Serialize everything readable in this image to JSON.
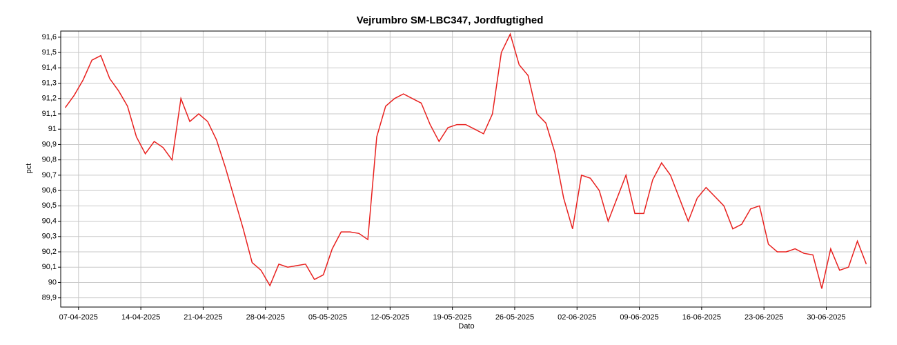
{
  "chart_data": {
    "type": "line",
    "title": "Vejrumbro SM-LBC347, Jordfugtighed",
    "x_label": "Dato",
    "y_label": "pct",
    "grid": true,
    "x": [
      "2025-04-05",
      "2025-04-06",
      "2025-04-07",
      "2025-04-08",
      "2025-04-09",
      "2025-04-10",
      "2025-04-11",
      "2025-04-12",
      "2025-04-13",
      "2025-04-14",
      "2025-04-15",
      "2025-04-16",
      "2025-04-17",
      "2025-04-18",
      "2025-04-19",
      "2025-04-20",
      "2025-04-21",
      "2025-04-22",
      "2025-04-23",
      "2025-04-24",
      "2025-04-25",
      "2025-04-26",
      "2025-04-27",
      "2025-04-28",
      "2025-04-29",
      "2025-04-30",
      "2025-05-01",
      "2025-05-02",
      "2025-05-03",
      "2025-05-04",
      "2025-05-05",
      "2025-05-06",
      "2025-05-07",
      "2025-05-08",
      "2025-05-09",
      "2025-05-10",
      "2025-05-11",
      "2025-05-12",
      "2025-05-13",
      "2025-05-14",
      "2025-05-15",
      "2025-05-16",
      "2025-05-17",
      "2025-05-18",
      "2025-05-19",
      "2025-05-20",
      "2025-05-21",
      "2025-05-22",
      "2025-05-23",
      "2025-05-24",
      "2025-05-25",
      "2025-05-26",
      "2025-05-27",
      "2025-05-28",
      "2025-05-29",
      "2025-05-30",
      "2025-05-31",
      "2025-06-01",
      "2025-06-02",
      "2025-06-03",
      "2025-06-04",
      "2025-06-05",
      "2025-06-06",
      "2025-06-07",
      "2025-06-08",
      "2025-06-09",
      "2025-06-10",
      "2025-06-11",
      "2025-06-12",
      "2025-06-13",
      "2025-06-14",
      "2025-06-15",
      "2025-06-16",
      "2025-06-17",
      "2025-06-18",
      "2025-06-19",
      "2025-06-20",
      "2025-06-21",
      "2025-06-22",
      "2025-06-23",
      "2025-06-24",
      "2025-06-25",
      "2025-06-26",
      "2025-06-27",
      "2025-06-28",
      "2025-06-29",
      "2025-06-30",
      "2025-07-01",
      "2025-07-02",
      "2025-07-03",
      "2025-07-04"
    ],
    "series": [
      {
        "name": "Jordfugtighed",
        "color": "#e8201e",
        "values": [
          91.14,
          91.22,
          91.32,
          91.45,
          91.48,
          91.33,
          91.25,
          91.15,
          90.95,
          90.84,
          90.92,
          90.88,
          90.8,
          91.2,
          91.05,
          91.1,
          91.05,
          90.93,
          90.75,
          90.55,
          90.35,
          90.13,
          90.08,
          89.98,
          90.12,
          90.1,
          90.11,
          90.12,
          90.02,
          90.05,
          90.22,
          90.33,
          90.33,
          90.32,
          90.28,
          90.95,
          91.15,
          91.2,
          91.23,
          91.2,
          91.17,
          91.03,
          90.92,
          91.01,
          91.03,
          91.03,
          91.0,
          90.97,
          91.1,
          91.5,
          91.62,
          91.42,
          91.35,
          91.1,
          91.04,
          90.85,
          90.55,
          90.35,
          90.7,
          90.68,
          90.6,
          90.4,
          90.55,
          90.7,
          90.45,
          90.45,
          90.67,
          90.78,
          90.7,
          90.55,
          90.4,
          90.55,
          90.62,
          90.56,
          90.5,
          90.35,
          90.38,
          90.48,
          90.5,
          90.25,
          90.2,
          90.2,
          90.22,
          90.19,
          90.18,
          89.96,
          90.22,
          90.08,
          90.1,
          90.27,
          90.12
        ]
      }
    ],
    "xlim": [
      "2025-04-05",
      "2025-07-05"
    ],
    "xticks": [
      {
        "value": "2025-04-07",
        "label": "07-04-2025"
      },
      {
        "value": "2025-04-14",
        "label": "14-04-2025"
      },
      {
        "value": "2025-04-21",
        "label": "21-04-2025"
      },
      {
        "value": "2025-04-28",
        "label": "28-04-2025"
      },
      {
        "value": "2025-05-05",
        "label": "05-05-2025"
      },
      {
        "value": "2025-05-12",
        "label": "12-05-2025"
      },
      {
        "value": "2025-05-19",
        "label": "19-05-2025"
      },
      {
        "value": "2025-05-26",
        "label": "26-05-2025"
      },
      {
        "value": "2025-06-02",
        "label": "02-06-2025"
      },
      {
        "value": "2025-06-09",
        "label": "09-06-2025"
      },
      {
        "value": "2025-06-16",
        "label": "16-06-2025"
      },
      {
        "value": "2025-06-23",
        "label": "23-06-2025"
      },
      {
        "value": "2025-06-30",
        "label": "30-06-2025"
      }
    ],
    "ylim": [
      89.84,
      91.64
    ],
    "yticks": [
      {
        "value": 89.9,
        "label": "89,9"
      },
      90,
      {
        "value": 90.1,
        "label": "90,1"
      },
      {
        "value": 90.2,
        "label": "90,2"
      },
      {
        "value": 90.3,
        "label": "90,3"
      },
      {
        "value": 90.4,
        "label": "90,4"
      },
      {
        "value": 90.5,
        "label": "90,5"
      },
      {
        "value": 90.6,
        "label": "90,6"
      },
      {
        "value": 90.7,
        "label": "90,7"
      },
      {
        "value": 90.8,
        "label": "90,8"
      },
      {
        "value": 90.9,
        "label": "90,9"
      },
      91,
      {
        "value": 91.1,
        "label": "91,1"
      },
      {
        "value": 91.2,
        "label": "91,2"
      },
      {
        "value": 91.3,
        "label": "91,3"
      },
      {
        "value": 91.4,
        "label": "91,4"
      },
      {
        "value": 91.5,
        "label": "91,5"
      },
      {
        "value": 91.6,
        "label": "91,6"
      }
    ]
  }
}
